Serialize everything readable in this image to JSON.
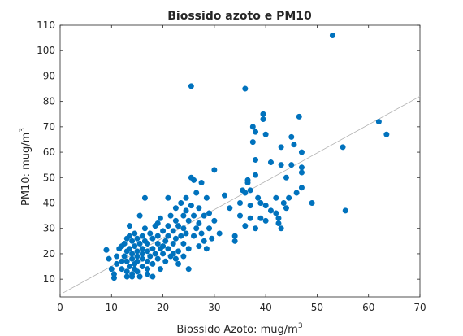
{
  "chart_data": {
    "type": "scatter",
    "title": "Biossido azoto e PM10",
    "xlabel": "Biossido Azoto: mug/m",
    "xlabel_sup": "3",
    "ylabel": "PM10: mug/m",
    "ylabel_sup": "3",
    "xlim": [
      0,
      70
    ],
    "ylim": [
      3,
      110
    ],
    "xticks": [
      "0",
      "10",
      "20",
      "30",
      "40",
      "50",
      "60",
      "70"
    ],
    "yticks": [
      "10",
      "20",
      "30",
      "40",
      "50",
      "60",
      "70",
      "80",
      "90",
      "100",
      "110"
    ],
    "grid": false,
    "marker_color": "#0072BD",
    "fit_line": {
      "x": [
        0.5,
        70
      ],
      "y": [
        4.5,
        82
      ]
    },
    "points": [
      [
        9,
        21.5
      ],
      [
        9.5,
        18
      ],
      [
        10,
        14
      ],
      [
        10.5,
        12
      ],
      [
        10.5,
        10.5
      ],
      [
        11,
        16
      ],
      [
        11,
        19
      ],
      [
        11.5,
        22
      ],
      [
        12,
        23
      ],
      [
        12,
        17
      ],
      [
        12,
        14
      ],
      [
        12.5,
        19
      ],
      [
        12.5,
        24
      ],
      [
        13,
        26
      ],
      [
        13,
        21
      ],
      [
        13,
        17
      ],
      [
        13,
        13
      ],
      [
        13,
        11
      ],
      [
        13.5,
        31
      ],
      [
        13.5,
        27
      ],
      [
        13.5,
        22
      ],
      [
        13.5,
        15
      ],
      [
        14,
        20
      ],
      [
        14,
        25
      ],
      [
        14,
        18
      ],
      [
        14,
        12
      ],
      [
        14,
        11
      ],
      [
        14.5,
        28
      ],
      [
        14.5,
        16
      ],
      [
        14.5,
        23
      ],
      [
        14.5,
        14
      ],
      [
        15,
        21
      ],
      [
        15,
        26
      ],
      [
        15,
        19
      ],
      [
        15,
        13
      ],
      [
        15,
        17
      ],
      [
        15.5,
        24
      ],
      [
        15.5,
        35
      ],
      [
        15.5,
        11
      ],
      [
        16,
        22
      ],
      [
        16,
        27
      ],
      [
        16,
        18
      ],
      [
        16,
        15
      ],
      [
        16,
        20
      ],
      [
        16.5,
        42
      ],
      [
        16.5,
        25
      ],
      [
        16.5,
        30
      ],
      [
        17,
        21
      ],
      [
        17,
        24
      ],
      [
        17,
        17
      ],
      [
        17,
        14
      ],
      [
        17,
        12
      ],
      [
        17.5,
        19
      ],
      [
        17.5,
        28
      ],
      [
        18,
        22
      ],
      [
        18,
        26
      ],
      [
        18,
        16
      ],
      [
        18,
        11
      ],
      [
        18.5,
        31
      ],
      [
        18.5,
        20
      ],
      [
        19,
        24
      ],
      [
        19,
        18
      ],
      [
        19,
        32
      ],
      [
        19,
        27
      ],
      [
        19.5,
        22
      ],
      [
        19.5,
        34
      ],
      [
        19.5,
        14
      ],
      [
        20,
        29
      ],
      [
        20,
        23
      ],
      [
        20,
        20
      ],
      [
        20.5,
        25
      ],
      [
        20.5,
        17
      ],
      [
        21,
        42
      ],
      [
        21,
        31
      ],
      [
        21,
        27
      ],
      [
        21,
        22
      ],
      [
        21.5,
        35
      ],
      [
        21.5,
        19
      ],
      [
        22,
        24
      ],
      [
        22,
        29
      ],
      [
        22,
        20
      ],
      [
        22.5,
        38
      ],
      [
        22.5,
        33
      ],
      [
        22.5,
        26
      ],
      [
        22.5,
        18
      ],
      [
        23,
        31
      ],
      [
        23,
        21
      ],
      [
        23,
        16
      ],
      [
        23.5,
        40
      ],
      [
        23.5,
        27
      ],
      [
        24,
        35
      ],
      [
        24,
        30
      ],
      [
        24,
        24
      ],
      [
        24,
        19
      ],
      [
        24.5,
        42
      ],
      [
        24.5,
        37
      ],
      [
        24.5,
        28
      ],
      [
        25,
        33
      ],
      [
        25,
        22
      ],
      [
        25,
        14
      ],
      [
        25.5,
        86
      ],
      [
        25.5,
        39
      ],
      [
        25.5,
        50
      ],
      [
        26,
        35
      ],
      [
        26,
        27
      ],
      [
        26,
        49
      ],
      [
        26.5,
        30
      ],
      [
        26.5,
        44
      ],
      [
        27,
        23
      ],
      [
        27,
        32
      ],
      [
        27,
        38
      ],
      [
        27.5,
        48
      ],
      [
        27.5,
        28
      ],
      [
        28,
        25
      ],
      [
        28,
        35
      ],
      [
        28.5,
        42
      ],
      [
        28.5,
        22
      ],
      [
        29,
        30
      ],
      [
        29,
        36
      ],
      [
        29.5,
        26
      ],
      [
        30,
        53
      ],
      [
        30,
        33
      ],
      [
        31,
        28
      ],
      [
        32,
        43
      ],
      [
        33,
        38
      ],
      [
        34,
        27
      ],
      [
        34,
        25
      ],
      [
        35,
        35
      ],
      [
        35,
        40
      ],
      [
        35.5,
        45
      ],
      [
        36,
        85
      ],
      [
        36,
        44
      ],
      [
        36,
        31
      ],
      [
        36.5,
        48
      ],
      [
        36.5,
        49
      ],
      [
        37,
        34
      ],
      [
        37,
        39
      ],
      [
        37,
        45
      ],
      [
        37.5,
        70
      ],
      [
        37.5,
        64
      ],
      [
        38,
        68
      ],
      [
        38,
        57
      ],
      [
        38,
        51
      ],
      [
        38,
        30
      ],
      [
        38.5,
        42
      ],
      [
        39,
        40
      ],
      [
        39,
        34
      ],
      [
        39.5,
        73
      ],
      [
        39.5,
        75
      ],
      [
        40,
        33
      ],
      [
        40,
        67
      ],
      [
        40,
        39
      ],
      [
        41,
        56
      ],
      [
        41,
        37
      ],
      [
        42,
        42
      ],
      [
        42,
        36
      ],
      [
        42.5,
        34
      ],
      [
        42.5,
        32
      ],
      [
        43,
        55
      ],
      [
        43,
        30
      ],
      [
        43,
        62
      ],
      [
        43.5,
        40
      ],
      [
        44,
        38
      ],
      [
        44,
        50
      ],
      [
        44.5,
        42
      ],
      [
        45,
        66
      ],
      [
        45,
        55
      ],
      [
        45.5,
        63
      ],
      [
        46,
        44
      ],
      [
        46.5,
        74
      ],
      [
        47,
        52
      ],
      [
        47,
        54
      ],
      [
        47,
        60
      ],
      [
        47,
        46
      ],
      [
        49,
        40
      ],
      [
        53,
        106
      ],
      [
        55,
        62
      ],
      [
        55.5,
        37
      ],
      [
        62,
        72
      ],
      [
        63.5,
        67
      ]
    ]
  }
}
